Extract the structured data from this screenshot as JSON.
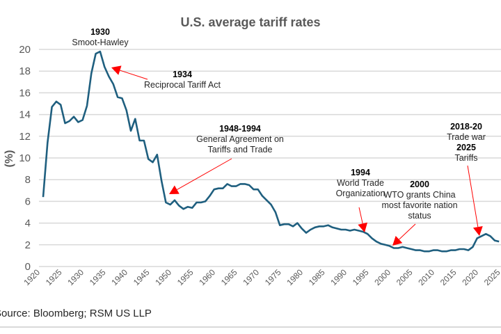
{
  "chart_data": {
    "type": "line",
    "title": "U.S. average tariff rates",
    "xlabel": "",
    "ylabel": "(%)",
    "ylim": [
      0,
      20
    ],
    "xlim": [
      1920,
      2024
    ],
    "grid": true,
    "legend": "none",
    "line_color": "#1f5f7f",
    "arrow_color": "#ff0000",
    "yticks": [
      "0",
      "2",
      "4",
      "6",
      "8",
      "10",
      "12",
      "14",
      "16",
      "18",
      "20"
    ],
    "xticks": [
      "1920",
      "1925",
      "1930",
      "1935",
      "1940",
      "1945",
      "1950",
      "1955",
      "1960",
      "1965",
      "1970",
      "1975",
      "1980",
      "1985",
      "1990",
      "1995",
      "2000",
      "2005",
      "2010",
      "2015",
      "2020",
      "2025"
    ],
    "x": [
      1920,
      1921,
      1922,
      1923,
      1924,
      1925,
      1926,
      1927,
      1928,
      1929,
      1930,
      1931,
      1932,
      1933,
      1934,
      1935,
      1936,
      1937,
      1938,
      1939,
      1940,
      1941,
      1942,
      1943,
      1944,
      1945,
      1946,
      1947,
      1948,
      1949,
      1950,
      1951,
      1952,
      1953,
      1954,
      1955,
      1956,
      1957,
      1958,
      1959,
      1960,
      1961,
      1962,
      1963,
      1964,
      1965,
      1966,
      1967,
      1968,
      1969,
      1970,
      1971,
      1972,
      1973,
      1974,
      1975,
      1976,
      1977,
      1978,
      1979,
      1980,
      1981,
      1982,
      1983,
      1984,
      1985,
      1986,
      1987,
      1988,
      1989,
      1990,
      1991,
      1992,
      1993,
      1994,
      1995,
      1996,
      1997,
      1998,
      1999,
      2000,
      2001,
      2002,
      2003,
      2004,
      2005,
      2006,
      2007,
      2008,
      2009,
      2010,
      2011,
      2012,
      2013,
      2014,
      2015,
      2016,
      2017,
      2018,
      2019,
      2020,
      2021,
      2022,
      2023,
      2024
    ],
    "y": [
      6.4,
      11.4,
      14.7,
      15.2,
      14.9,
      13.2,
      13.4,
      13.8,
      13.3,
      13.5,
      14.8,
      17.8,
      19.6,
      19.8,
      18.4,
      17.5,
      16.8,
      15.6,
      15.5,
      14.4,
      12.5,
      13.6,
      11.6,
      11.6,
      9.9,
      9.6,
      10.3,
      7.9,
      5.9,
      5.7,
      6.1,
      5.6,
      5.3,
      5.5,
      5.4,
      5.9,
      5.9,
      6.0,
      6.5,
      7.1,
      7.2,
      7.2,
      7.6,
      7.4,
      7.4,
      7.6,
      7.6,
      7.5,
      7.1,
      7.1,
      6.5,
      6.1,
      5.7,
      5.0,
      3.8,
      3.9,
      3.9,
      3.7,
      4.0,
      3.5,
      3.1,
      3.4,
      3.6,
      3.7,
      3.7,
      3.8,
      3.6,
      3.5,
      3.4,
      3.4,
      3.3,
      3.4,
      3.3,
      3.2,
      3.0,
      2.6,
      2.3,
      2.1,
      2.0,
      1.9,
      1.7,
      1.7,
      1.8,
      1.7,
      1.6,
      1.5,
      1.5,
      1.4,
      1.4,
      1.5,
      1.5,
      1.4,
      1.4,
      1.5,
      1.5,
      1.6,
      1.6,
      1.5,
      1.8,
      2.6,
      2.8,
      3.0,
      2.8,
      2.4,
      2.3
    ],
    "annotations": [
      {
        "bold": "1930",
        "lines": [
          "Smoot-Hawley"
        ]
      },
      {
        "bold": "1934",
        "lines": [
          "Reciprocal Tariff Act"
        ]
      },
      {
        "bold": "1948-1994",
        "lines": [
          "General Agreement on",
          "Tariffs and Trade"
        ]
      },
      {
        "bold": "1994",
        "lines": [
          "World Trade",
          "Organization"
        ]
      },
      {
        "bold": "2000",
        "lines": [
          "WTO grants China",
          "most favorite nation",
          "status"
        ]
      },
      {
        "bold": "2018-20",
        "lines": [
          "Trade war"
        ],
        "bold2": "2025",
        "lines2": [
          "Tariffs"
        ]
      }
    ],
    "source": "Source: Bloomberg; RSM US LLP"
  }
}
